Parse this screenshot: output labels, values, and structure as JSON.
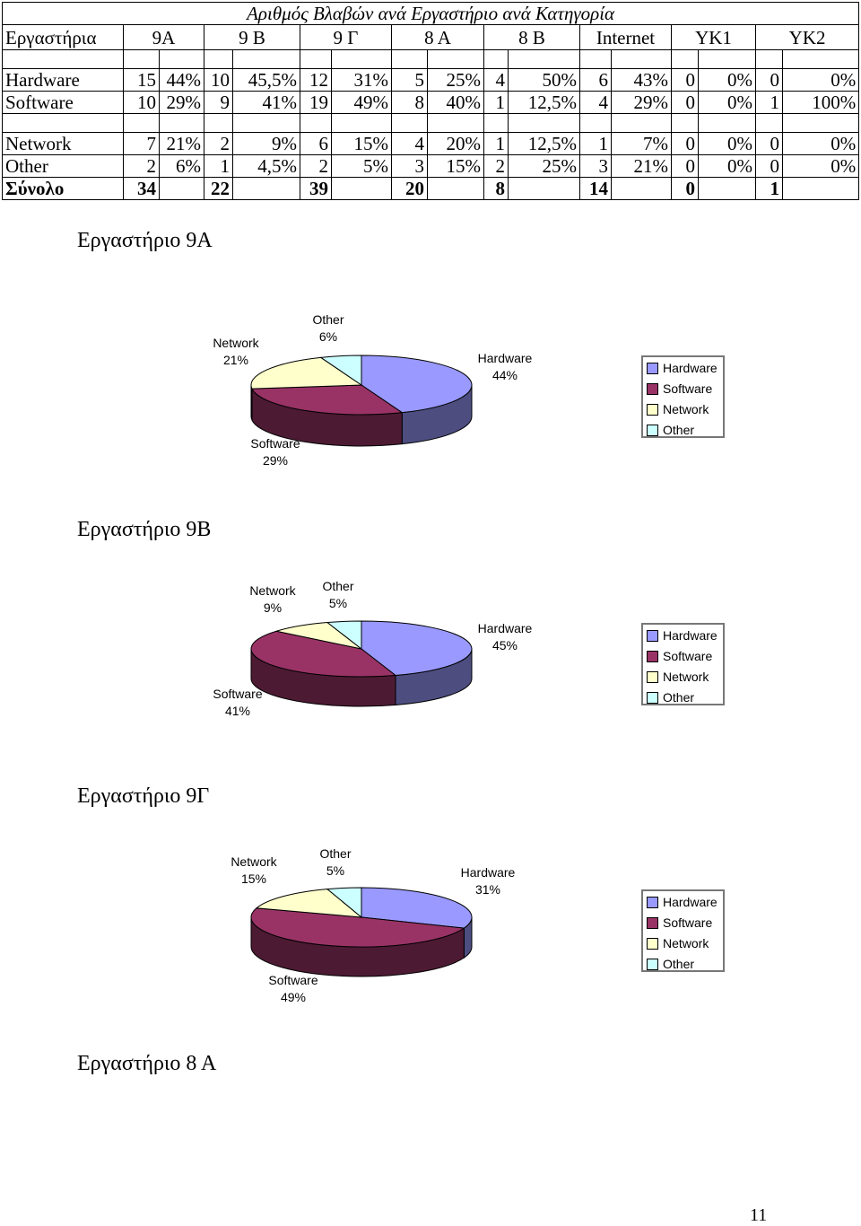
{
  "table": {
    "title": "Αριθμός Βλαβών ανά Εργαστήριο ανά Κατηγορία",
    "header": [
      "Εργαστήρια",
      "9Α",
      "9 Β",
      "9 Γ",
      "8 Α",
      "8 Β",
      "Internet",
      "ΥΚ1",
      "ΥΚ2"
    ],
    "rows": [
      {
        "cells": [
          "Hardware",
          "15",
          "44%",
          "10",
          "45,5%",
          "12",
          "31%",
          "5",
          "25%",
          "4",
          "50%",
          "6",
          "43%",
          "0",
          "0%",
          "0",
          "0%"
        ]
      },
      {
        "cells": [
          "Software",
          "10",
          "29%",
          "9",
          "41%",
          "19",
          "49%",
          "8",
          "40%",
          "1",
          "12,5%",
          "4",
          "29%",
          "0",
          "0%",
          "1",
          "100%"
        ]
      },
      {
        "cells": [
          "Network",
          "7",
          "21%",
          "2",
          "9%",
          "6",
          "15%",
          "4",
          "20%",
          "1",
          "12,5%",
          "1",
          "7%",
          "0",
          "0%",
          "0",
          "0%"
        ]
      },
      {
        "cells": [
          "Other",
          "2",
          "6%",
          "1",
          "4,5%",
          "2",
          "5%",
          "3",
          "15%",
          "2",
          "25%",
          "3",
          "21%",
          "0",
          "0%",
          "0",
          "0%"
        ]
      }
    ],
    "total": [
      "Σύνολο",
      "34",
      "22",
      "39",
      "20",
      "8",
      "14",
      "0",
      "1"
    ]
  },
  "sections": [
    "Εργαστήριο 9Α",
    "Εργαστήριο 9Β",
    "Εργαστήριο 9Γ",
    "Εργαστήριο 8 Α"
  ],
  "colors": {
    "hardware": "#9999ff",
    "software": "#993366",
    "network": "#ffffcc",
    "other": "#ccffff"
  },
  "legend": [
    "Hardware",
    "Software",
    "Network",
    "Other"
  ],
  "chart_data": [
    {
      "type": "pie",
      "title": "",
      "labels": [
        "Hardware",
        "Software",
        "Network",
        "Other"
      ],
      "values": [
        44,
        29,
        21,
        6
      ],
      "value_labels": [
        "44%",
        "29%",
        "21%",
        "6%"
      ]
    },
    {
      "type": "pie",
      "title": "",
      "labels": [
        "Hardware",
        "Software",
        "Network",
        "Other"
      ],
      "values": [
        45,
        41,
        9,
        5
      ],
      "value_labels": [
        "45%",
        "41%",
        "9%",
        "5%"
      ]
    },
    {
      "type": "pie",
      "title": "",
      "labels": [
        "Hardware",
        "Software",
        "Network",
        "Other"
      ],
      "values": [
        31,
        49,
        15,
        5
      ],
      "value_labels": [
        "31%",
        "49%",
        "15%",
        "5%"
      ]
    }
  ],
  "page_number": "11"
}
